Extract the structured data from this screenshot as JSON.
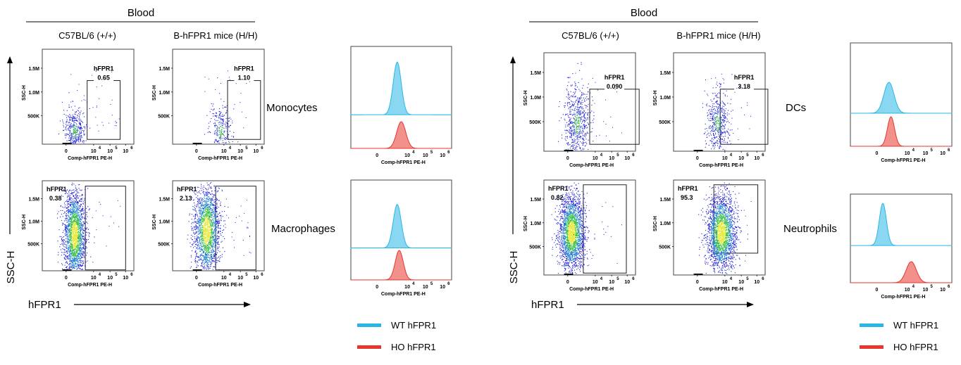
{
  "figure": {
    "panels": [
      {
        "tissue": "Blood",
        "strain_wt": "C57BL/6 (+/+)",
        "strain_ho": "B-hFPR1 mice (H/H)",
        "y_axis_label": "SSC-H",
        "x_axis_label": "hFPR1",
        "rows": [
          {
            "cell_type": "Monocytes",
            "gate_label": "hFPR1",
            "wt_value": "0.65",
            "ho_value": "1.10"
          },
          {
            "cell_type": "Macrophages",
            "gate_label": "hFPR1",
            "wt_value": "0.38",
            "ho_value": "2.13"
          }
        ]
      },
      {
        "tissue": "Blood",
        "strain_wt": "C57BL/6 (+/+)",
        "strain_ho": "B-hFPR1 mice (H/H)",
        "y_axis_label": "SSC-H",
        "x_axis_label": "hFPR1",
        "rows": [
          {
            "cell_type": "DCs",
            "gate_label": "hFPR1",
            "wt_value": "0.090",
            "ho_value": "3.18"
          },
          {
            "cell_type": "Neutrophils",
            "gate_label": "hFPR1",
            "wt_value": "0.82",
            "ho_value": "95.3"
          }
        ]
      }
    ],
    "plot_axes": {
      "ylabel": "SSC-H",
      "xlabel": "Comp-hFPR1 PE-H",
      "y_ticks": [
        "1.5M",
        "1.0M",
        "500K"
      ],
      "x_ticks": [
        "0",
        "10",
        "10",
        "10"
      ],
      "x_tick_exponents": [
        "4",
        "5",
        "6"
      ]
    },
    "legend": {
      "wt_label": "WT hFPR1",
      "ho_label": "HO hFPR1",
      "wt_color": "#29b6e6",
      "ho_color": "#e8352e"
    }
  },
  "chart_data": {
    "type": "scatter",
    "title": "",
    "xlabel": "Comp-hFPR1 PE-H",
    "ylabel": "SSC-H",
    "x_scale": "biexponential",
    "xlim": [
      -1000,
      1000000
    ],
    "ylim": [
      0,
      1800000
    ],
    "series_colors": {
      "WT hFPR1": "#29b6e6",
      "HO hFPR1": "#e8352e"
    },
    "gates": [
      {
        "population": "Monocytes",
        "gate": "hFPR1",
        "C57BL/6 (+/+)": 0.65,
        "B-hFPR1 mice (H/H)": 1.1
      },
      {
        "population": "Macrophages",
        "gate": "hFPR1",
        "C57BL/6 (+/+)": 0.38,
        "B-hFPR1 mice (H/H)": 2.13
      },
      {
        "population": "DCs",
        "gate": "hFPR1",
        "C57BL/6 (+/+)": 0.09,
        "B-hFPR1 mice (H/H)": 3.18
      },
      {
        "population": "Neutrophils",
        "gate": "hFPR1",
        "C57BL/6 (+/+)": 0.82,
        "B-hFPR1 mice (H/H)": 95.3
      }
    ]
  }
}
